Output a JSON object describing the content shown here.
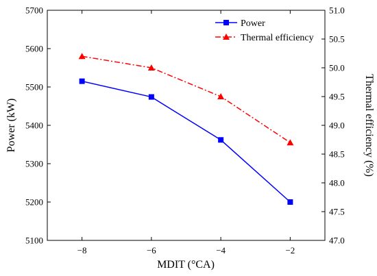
{
  "chart_data": {
    "type": "line",
    "x": [
      -8,
      -6,
      -4,
      -2
    ],
    "x_tick_labels": [
      "−8",
      "−6",
      "−4",
      "−2"
    ],
    "xlabel": "MDIT (°CA)",
    "xlim": [
      -9,
      -1
    ],
    "ylabel": "Power (kW)",
    "ylim": [
      5100,
      5700
    ],
    "y_ticks": [
      5100,
      5200,
      5300,
      5400,
      5500,
      5600,
      5700
    ],
    "y2label": "Thermal efficiency (%)",
    "y2lim": [
      47.0,
      51.0
    ],
    "y2_ticks": [
      "47.0",
      "47.5",
      "48.0",
      "48.5",
      "49.0",
      "49.5",
      "50.0",
      "50.5",
      "51.0"
    ],
    "legend_position": "top-right",
    "grid": false,
    "series": [
      {
        "name": "Power",
        "axis": "left",
        "values": [
          5515,
          5474,
          5362,
          5200
        ],
        "color": "#0000ff",
        "marker": "square",
        "line_style": "solid"
      },
      {
        "name": "Thermal efficiency",
        "axis": "right",
        "values": [
          50.2,
          50.0,
          49.5,
          48.7
        ],
        "color": "#ff0000",
        "marker": "triangle",
        "line_style": "dash-dot"
      }
    ]
  }
}
